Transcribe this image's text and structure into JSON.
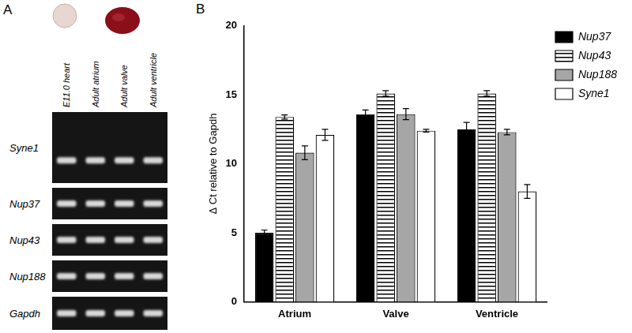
{
  "panel_a": {
    "label": "A",
    "lanes": [
      "E11.0 heart",
      "Adult atrium",
      "Adult valve",
      "Adult ventricle"
    ],
    "rows": [
      "Syne1",
      "Nup37",
      "Nup43",
      "Nup188",
      "Gapdh"
    ]
  },
  "chart_data": {
    "label": "B",
    "type": "bar",
    "y_label": "Δ Ct relative to Gapdh",
    "categories": [
      "Atrium",
      "Valve",
      "Ventricle"
    ],
    "series": [
      {
        "name": "Nup37",
        "color": "#000000",
        "values": [
          5.0,
          13.6,
          12.5
        ],
        "errors": [
          0.2,
          0.3,
          0.5
        ]
      },
      {
        "name": "Nup43",
        "color": "#000000",
        "marker": "stripes",
        "values": [
          13.4,
          15.1,
          15.1
        ],
        "errors": [
          0.15,
          0.2,
          0.2
        ]
      },
      {
        "name": "Nup188",
        "color": "#a6a6a6",
        "values": [
          10.8,
          13.6,
          12.3
        ],
        "errors": [
          0.5,
          0.4,
          0.2
        ]
      },
      {
        "name": "Syne1",
        "color": "#ffffff",
        "values": [
          12.1,
          12.4,
          8.0
        ],
        "errors": [
          0.4,
          0.1,
          0.5
        ]
      }
    ],
    "ylim": [
      0,
      20
    ],
    "yticks": [
      0,
      5,
      10,
      15,
      20
    ],
    "grid": false,
    "legend": "right"
  }
}
